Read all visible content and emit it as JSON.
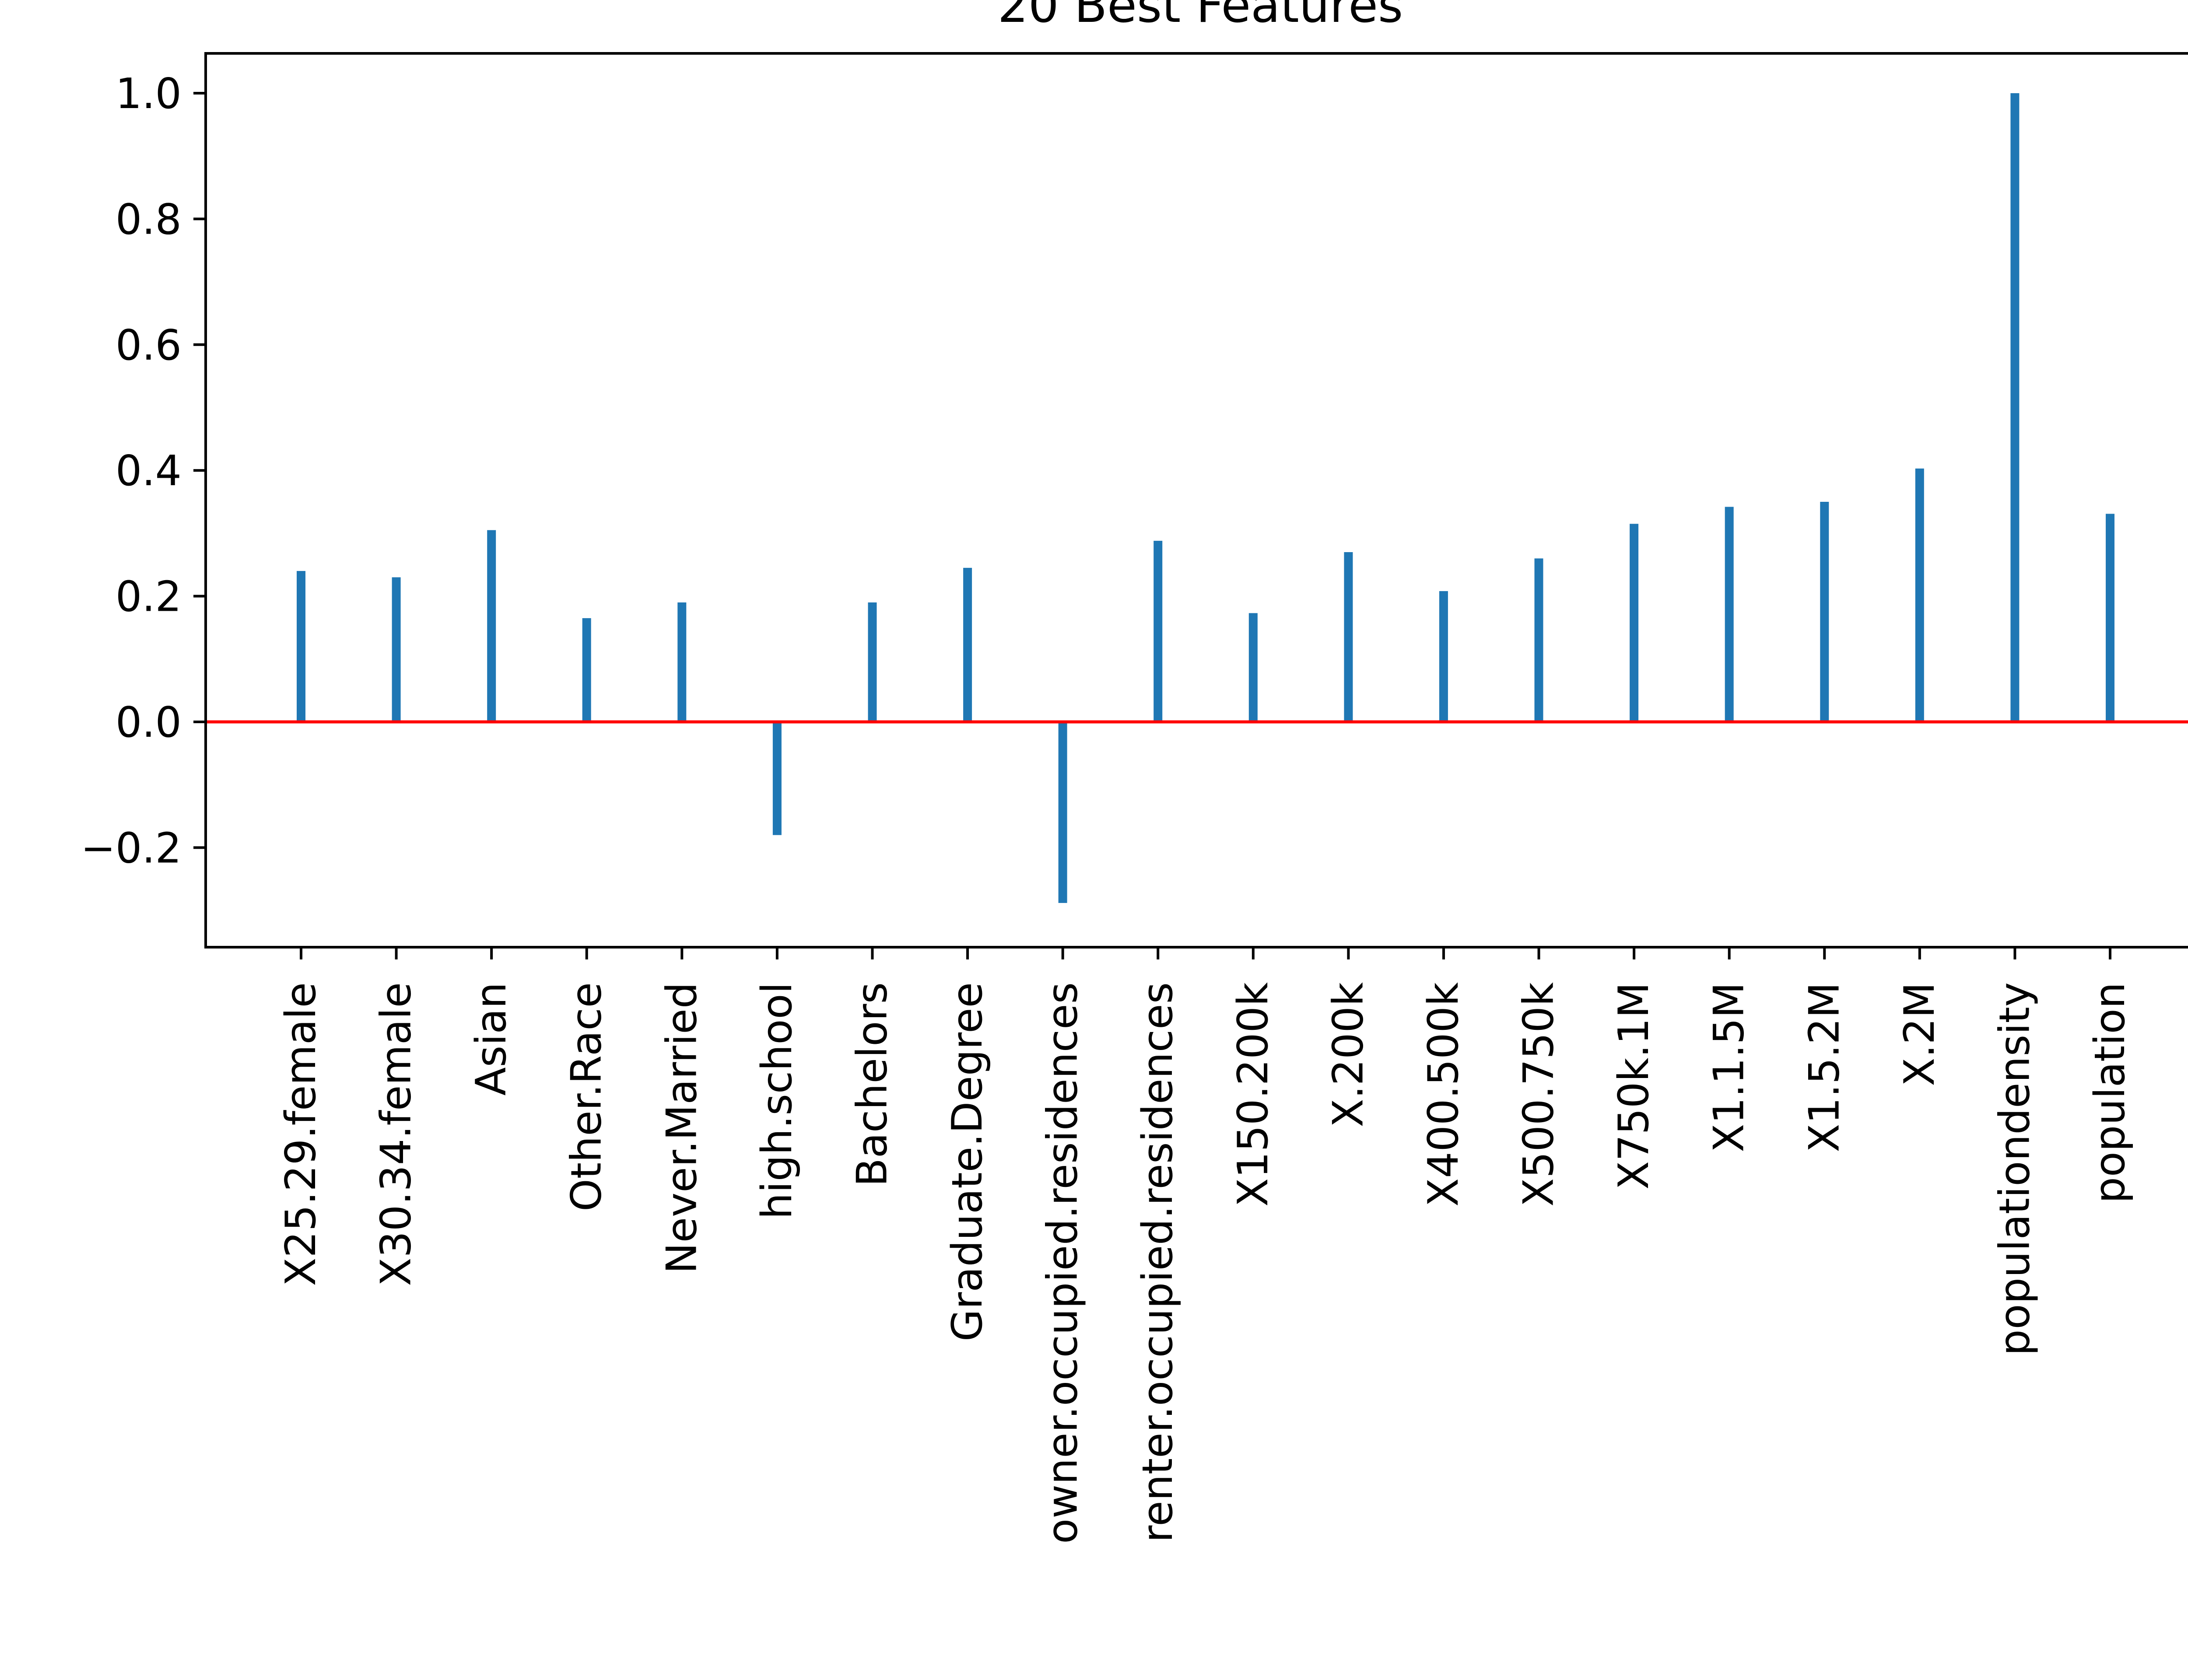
{
  "chart_data": {
    "type": "bar",
    "title": "20 Best Features",
    "xlabel": "",
    "ylabel": "",
    "categories": [
      "X25.29.female",
      "X30.34.female",
      "Asian",
      "Other.Race",
      "Never.Married",
      "high.school",
      "Bachelors",
      "Graduate.Degree",
      "owner.occupied.residences",
      "renter.occupied.residences",
      "X150.200k",
      "X.200k",
      "X400.500k",
      "X500.750k",
      "X750k.1M",
      "X1.1.5M",
      "X1.5.2M",
      "X.2M",
      "populationdensity",
      "population"
    ],
    "values": [
      0.24,
      0.23,
      0.305,
      0.165,
      0.19,
      -0.18,
      0.19,
      0.245,
      -0.288,
      0.288,
      0.173,
      0.27,
      0.208,
      0.26,
      0.315,
      0.342,
      0.35,
      0.403,
      1.0,
      0.331
    ],
    "yticks": [
      "1.0",
      "0.8",
      "0.6",
      "0.4",
      "0.2",
      "0.0",
      "−0.2"
    ],
    "ylim": [
      -0.35,
      1.06
    ],
    "grid": false,
    "reference_line": {
      "y": 0.0,
      "color": "#ff0000"
    },
    "colors": {
      "bar": "#1f77b4",
      "reference": "#ff0000",
      "axes": "#000000"
    }
  }
}
